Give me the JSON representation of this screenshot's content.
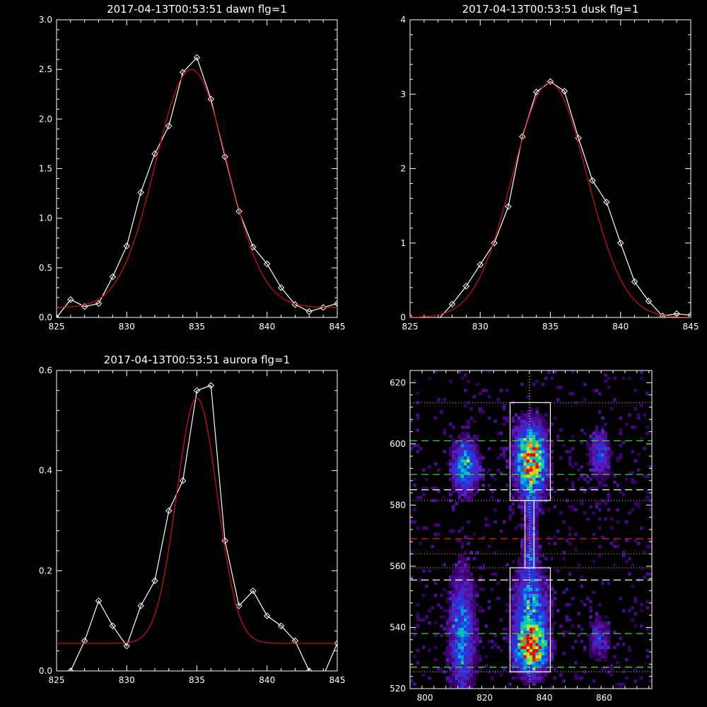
{
  "chart_data": [
    {
      "type": "line",
      "title": "2017-04-13T00:53:51 dawn flg=1",
      "xlim": [
        825,
        845
      ],
      "ylim": [
        0,
        3.0
      ],
      "xticks": [
        825,
        830,
        835,
        840,
        845
      ],
      "yticks": [
        0.0,
        0.5,
        1.0,
        1.5,
        2.0,
        2.5,
        3.0
      ],
      "ytick_labels": [
        "0.0",
        "0.5",
        "1.0",
        "1.5",
        "2.0",
        "2.5",
        "3.0"
      ],
      "series": [
        {
          "color": "#ffffff",
          "marker": "diamond",
          "x": [
            825,
            826,
            827,
            828,
            829,
            830,
            831,
            832,
            833,
            834,
            835,
            836,
            837,
            838,
            839,
            840,
            841,
            842,
            843,
            844,
            845
          ],
          "y": [
            0.0,
            0.18,
            0.11,
            0.14,
            0.41,
            0.72,
            1.26,
            1.65,
            1.93,
            2.47,
            2.62,
            2.2,
            1.62,
            1.07,
            0.71,
            0.54,
            0.3,
            0.13,
            0.06,
            0.1,
            0.14
          ]
        },
        {
          "color": "#d01010",
          "marker": "none",
          "fit": {
            "kind": "gaussian",
            "amplitude": 2.4,
            "center": 834.6,
            "sigma": 2.55,
            "offset": 0.1
          }
        }
      ]
    },
    {
      "type": "line",
      "title": "2017-04-13T00:53:51 dusk flg=1",
      "xlim": [
        825,
        845
      ],
      "ylim": [
        0,
        4
      ],
      "xticks": [
        825,
        830,
        835,
        840,
        845
      ],
      "yticks": [
        0,
        1,
        2,
        3,
        4
      ],
      "ytick_labels": [
        "0",
        "1",
        "2",
        "3",
        "4"
      ],
      "series": [
        {
          "color": "#ffffff",
          "marker": "diamond",
          "x": [
            825,
            826,
            827,
            828,
            829,
            830,
            831,
            832,
            833,
            834,
            835,
            836,
            837,
            838,
            839,
            840,
            841,
            842,
            843,
            844,
            845
          ],
          "y": [
            0.0,
            -0.02,
            -0.03,
            0.18,
            0.42,
            0.71,
            1.0,
            1.49,
            2.43,
            3.03,
            3.17,
            3.04,
            2.41,
            1.84,
            1.55,
            1.0,
            0.48,
            0.22,
            0.02,
            0.05,
            0.03
          ]
        },
        {
          "color": "#d01010",
          "marker": "none",
          "fit": {
            "kind": "gaussian",
            "amplitude": 3.15,
            "center": 834.95,
            "sigma": 2.65,
            "offset": 0.0
          }
        }
      ]
    },
    {
      "type": "line",
      "title": "2017-04-13T00:53:51 aurora flg=1",
      "xlim": [
        825,
        845
      ],
      "ylim": [
        0,
        0.6
      ],
      "xticks": [
        825,
        830,
        835,
        840,
        845
      ],
      "yticks": [
        0.0,
        0.2,
        0.4,
        0.6
      ],
      "ytick_labels": [
        "0.0",
        "0.2",
        "0.4",
        "0.6"
      ],
      "series": [
        {
          "color": "#ffffff",
          "marker": "diamond",
          "x": [
            825,
            826,
            827,
            828,
            829,
            830,
            831,
            832,
            833,
            834,
            835,
            836,
            837,
            838,
            839,
            840,
            841,
            842,
            843,
            844,
            845
          ],
          "y": [
            -0.02,
            0.0,
            0.06,
            0.14,
            0.09,
            0.05,
            0.13,
            0.18,
            0.32,
            0.38,
            0.56,
            0.57,
            0.26,
            0.13,
            0.16,
            0.11,
            0.09,
            0.06,
            0.0,
            -0.01,
            0.055
          ]
        },
        {
          "color": "#d01010",
          "marker": "none",
          "fit": {
            "kind": "gaussian",
            "amplitude": 0.49,
            "center": 835.0,
            "sigma": 1.45,
            "offset": 0.055
          }
        }
      ]
    },
    {
      "type": "heatmap",
      "title": "",
      "xlim": [
        795,
        876
      ],
      "ylim": [
        520,
        624
      ],
      "xticks": [
        800,
        820,
        840,
        860
      ],
      "yticks": [
        520,
        540,
        560,
        580,
        600,
        620
      ],
      "colormap": "rainbow",
      "blobs": [
        {
          "x": 835,
          "y": 594,
          "sx": 3.5,
          "sy": 8,
          "amp": 1.0
        },
        {
          "x": 835,
          "y": 532,
          "sx": 3.5,
          "sy": 5,
          "amp": 0.9
        },
        {
          "x": 835,
          "y": 545,
          "sx": 4,
          "sy": 10,
          "amp": 0.55
        },
        {
          "x": 813,
          "y": 592,
          "sx": 3,
          "sy": 6,
          "amp": 0.62
        },
        {
          "x": 812,
          "y": 538,
          "sx": 3,
          "sy": 14,
          "amp": 0.5
        },
        {
          "x": 858,
          "y": 596,
          "sx": 2.5,
          "sy": 6,
          "amp": 0.35
        },
        {
          "x": 858,
          "y": 536,
          "sx": 2.5,
          "sy": 5,
          "amp": 0.3
        },
        {
          "x": 835,
          "y": 568,
          "sx": 1.5,
          "sy": 10,
          "amp": 0.3
        }
      ],
      "vline_dotted": {
        "x": 835,
        "color": "#ffffff"
      },
      "boxes": [
        {
          "x0": 828.5,
          "x1": 842.0,
          "y0": 581.5,
          "y1": 613.5,
          "color": "#ffffff"
        },
        {
          "x0": 828.5,
          "x1": 842.0,
          "y0": 525.5,
          "y1": 559.5,
          "color": "#ffffff"
        },
        {
          "x0": 833.5,
          "x1": 836.5,
          "y0": 559.5,
          "y1": 581.5,
          "color": "#ffffff"
        }
      ],
      "hlines": [
        {
          "y": 613.5,
          "color": "#c070c0",
          "style": "dotted"
        },
        {
          "y": 601,
          "color": "#40d040",
          "style": "dashed"
        },
        {
          "y": 590,
          "color": "#40d040",
          "style": "dashed"
        },
        {
          "y": 585,
          "color": "#ffffff",
          "style": "dashed"
        },
        {
          "y": 581.5,
          "color": "#c070c0",
          "style": "dotted"
        },
        {
          "y": 569,
          "color": "#e02020",
          "style": "dashed"
        },
        {
          "y": 564,
          "color": "#d08020",
          "style": "dotted"
        },
        {
          "y": 559.5,
          "color": "#d08020",
          "style": "dotted"
        },
        {
          "y": 555.5,
          "color": "#ffffff",
          "style": "dashed"
        },
        {
          "y": 538,
          "color": "#40d040",
          "style": "dashed"
        },
        {
          "y": 527,
          "color": "#40d040",
          "style": "dashed"
        },
        {
          "y": 525.5,
          "color": "#c070c0",
          "style": "dotted"
        }
      ]
    }
  ]
}
